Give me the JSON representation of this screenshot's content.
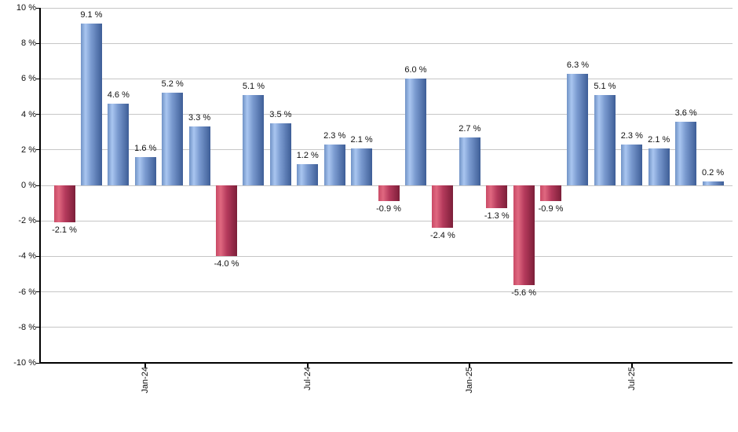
{
  "chart_data": {
    "type": "bar",
    "title": "",
    "xlabel": "",
    "ylabel": "",
    "grid": true,
    "legend": null,
    "ylim": [
      -10,
      10
    ],
    "y_tick_step": 2,
    "y_tick_labels": [
      "10 %",
      "8 %",
      "6 %",
      "4 %",
      "2 %",
      "0 %",
      "-2 %",
      "-4 %",
      "-6 %",
      "-8 %",
      "-10 %"
    ],
    "x_tick_positions": [
      3,
      9,
      15,
      21
    ],
    "x_tick_labels": [
      "Jan-24",
      "Jul-24",
      "Jan-25",
      "Jul-25"
    ],
    "values": [
      -2.1,
      9.1,
      4.6,
      1.6,
      5.2,
      3.3,
      -4.0,
      5.1,
      3.5,
      1.2,
      2.3,
      2.1,
      -0.9,
      6.0,
      -2.4,
      2.7,
      -1.3,
      -5.6,
      -0.9,
      6.3,
      5.1,
      2.3,
      2.1,
      3.6,
      0.2
    ],
    "bar_labels": [
      "-2.1 %",
      "9.1 %",
      "4.6 %",
      "1.6 %",
      "5.2 %",
      "3.3 %",
      "-4.0 %",
      "5.1 %",
      "3.5 %",
      "1.2 %",
      "2.3 %",
      "2.1 %",
      "-0.9 %",
      "6.0 %",
      "-2.4 %",
      "2.7 %",
      "-1.3 %",
      "-5.6 %",
      "-0.9 %",
      "6.3 %",
      "5.1 %",
      "2.3 %",
      "2.1 %",
      "3.6 %",
      "0.2 %"
    ],
    "colors": {
      "positive_bar_gradient": [
        "#7193c6",
        "#a9c6f0",
        "#7b9bd0",
        "#3e5e97"
      ],
      "negative_bar_gradient": [
        "#c94a66",
        "#e06880",
        "#b53a5c",
        "#7c1f39"
      ],
      "gridline": "#c6c6c6",
      "axis": "#000000",
      "text": "#111111",
      "background": "#ffffff"
    }
  }
}
